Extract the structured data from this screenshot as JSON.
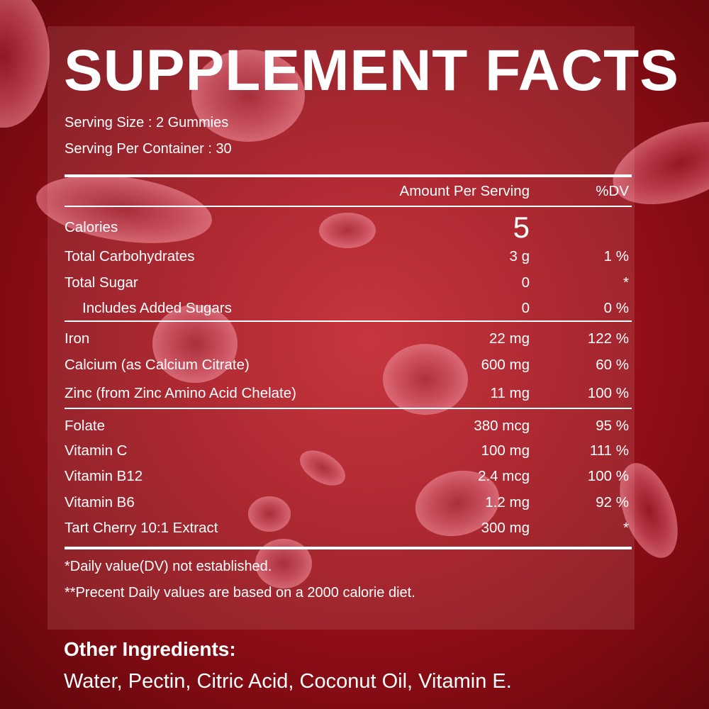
{
  "title": "SUPPLEMENT FACTS",
  "serving_size": "Serving Size : 2 Gummies",
  "servings_per_container": "Serving Per Container : 30",
  "header": {
    "amount": "Amount Per Serving",
    "dv": "%DV"
  },
  "rows": [
    {
      "name": "Calories",
      "amount": "5",
      "dv": ""
    },
    {
      "name": "Total Carbohydrates",
      "amount": "3 g",
      "dv": "1 %"
    },
    {
      "name": "Total Sugar",
      "amount": "0",
      "dv": "*"
    },
    {
      "name": "Includes Added Sugars",
      "amount": "0",
      "dv": "0 %"
    },
    {
      "name": "Iron",
      "amount": "22 mg",
      "dv": "122 %"
    },
    {
      "name": "Calcium (as Calcium Citrate)",
      "amount": "600 mg",
      "dv": "60 %"
    },
    {
      "name": "Zinc (from Zinc Amino Acid Chelate)",
      "amount": "11 mg",
      "dv": "100 %"
    },
    {
      "name": "Folate",
      "amount": "380 mcg",
      "dv": "95 %"
    },
    {
      "name": "Vitamin C",
      "amount": "100 mg",
      "dv": "111 %"
    },
    {
      "name": "Vitamin B12",
      "amount": "2.4 mcg",
      "dv": "100 %"
    },
    {
      "name": "Vitamin B6",
      "amount": "1.2 mg",
      "dv": "92 %"
    },
    {
      "name": "Tart Cherry 10:1 Extract",
      "amount": "300 mg",
      "dv": "*"
    }
  ],
  "footnotes": [
    "*Daily value(DV) not established.",
    "**Precent Daily values are based on a 2000 calorie diet."
  ],
  "other_ingredients": {
    "title": "Other Ingredients:",
    "value": "Water, Pectin, Citric Acid, Coconut Oil, Vitamin E."
  },
  "colors": {
    "background": "#a3121c",
    "text": "#ffffff"
  }
}
